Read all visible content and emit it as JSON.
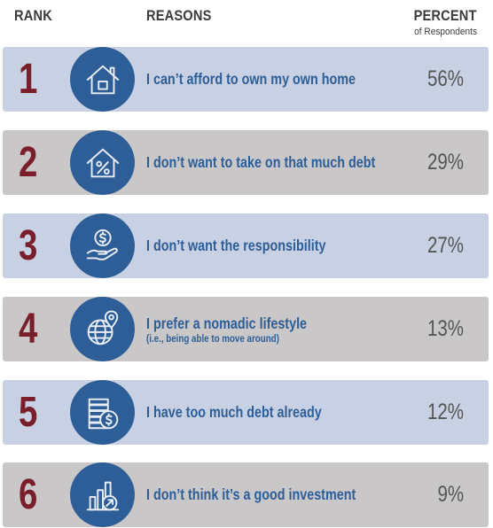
{
  "header": {
    "rank": "RANK",
    "reasons": "REASONS",
    "percent": "PERCENT",
    "percent_sub": "of Respondents"
  },
  "rows": [
    {
      "rank": "1",
      "reason": "I can’t afford to own my own home",
      "note": "",
      "percent": "56%",
      "icon": "house-icon",
      "color": "blue"
    },
    {
      "rank": "2",
      "reason": "I don’t want to take on that much debt",
      "note": "",
      "percent": "29%",
      "icon": "house-percent-icon",
      "color": "gray"
    },
    {
      "rank": "3",
      "reason": "I don’t want the responsibility",
      "note": "",
      "percent": "27%",
      "icon": "hand-coin-icon",
      "color": "blue"
    },
    {
      "rank": "4",
      "reason": "I prefer a nomadic lifestyle",
      "note": "(i.e., being able to move around)",
      "percent": "13%",
      "icon": "globe-pin-icon",
      "color": "gray"
    },
    {
      "rank": "5",
      "reason": "I have too much debt already",
      "note": "",
      "percent": "12%",
      "icon": "bills-coin-icon",
      "color": "blue"
    },
    {
      "rank": "6",
      "reason": "I don’t think it’s a good investment",
      "note": "",
      "percent": "9%",
      "icon": "bar-chart-arrow-icon",
      "color": "gray"
    }
  ],
  "chart_data": {
    "type": "table",
    "columns": [
      "RANK",
      "REASONS",
      "PERCENT of Respondents"
    ],
    "categories": [
      "I can’t afford to own my own home",
      "I don’t want to take on that much debt",
      "I don’t want the responsibility",
      "I prefer a nomadic lifestyle",
      "I have too much debt already",
      "I don’t think it’s a good investment"
    ],
    "values": [
      56,
      29,
      27,
      13,
      12,
      9
    ],
    "colors": {
      "rank": "#7a1e2c",
      "icon_bg": "#2e5e97",
      "text": "#2e5e97",
      "row_blue": "#c7d1e3",
      "row_gray": "#c9c7c8"
    }
  }
}
